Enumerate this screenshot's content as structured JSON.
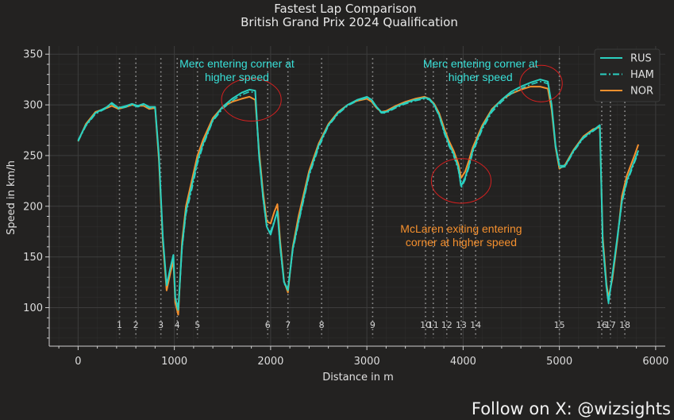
{
  "chart_data": {
    "type": "line",
    "title": "Fastest Lap Comparison",
    "subtitle": "British Grand Prix 2024 Qualification",
    "xlabel": "Distance in m",
    "ylabel": "Speed in km/h",
    "xlim": [
      -300,
      6100
    ],
    "ylim": [
      62,
      358
    ],
    "x_ticks": [
      0,
      1000,
      2000,
      3000,
      4000,
      5000,
      6000
    ],
    "y_ticks": [
      100,
      150,
      200,
      250,
      300,
      350
    ],
    "grid": true,
    "legend_position": "top-right",
    "series": [
      {
        "name": "RUS",
        "color": "#2bd0c0",
        "style": "solid",
        "points": [
          [
            0,
            265
          ],
          [
            80,
            280
          ],
          [
            180,
            292
          ],
          [
            300,
            298
          ],
          [
            350,
            302
          ],
          [
            420,
            297
          ],
          [
            500,
            299
          ],
          [
            560,
            301
          ],
          [
            620,
            299
          ],
          [
            680,
            301
          ],
          [
            740,
            298
          ],
          [
            800,
            298
          ],
          [
            840,
            250
          ],
          [
            880,
            170
          ],
          [
            920,
            122
          ],
          [
            960,
            140
          ],
          [
            990,
            152
          ],
          [
            1010,
            110
          ],
          [
            1040,
            98
          ],
          [
            1080,
            160
          ],
          [
            1120,
            195
          ],
          [
            1180,
            220
          ],
          [
            1240,
            245
          ],
          [
            1300,
            262
          ],
          [
            1400,
            285
          ],
          [
            1500,
            298
          ],
          [
            1600,
            306
          ],
          [
            1700,
            312
          ],
          [
            1780,
            315
          ],
          [
            1840,
            314
          ],
          [
            1880,
            250
          ],
          [
            1920,
            210
          ],
          [
            1960,
            180
          ],
          [
            2000,
            172
          ],
          [
            2040,
            185
          ],
          [
            2070,
            195
          ],
          [
            2100,
            160
          ],
          [
            2140,
            125
          ],
          [
            2180,
            118
          ],
          [
            2230,
            158
          ],
          [
            2290,
            185
          ],
          [
            2400,
            232
          ],
          [
            2500,
            260
          ],
          [
            2600,
            280
          ],
          [
            2700,
            292
          ],
          [
            2800,
            300
          ],
          [
            2900,
            305
          ],
          [
            3000,
            308
          ],
          [
            3050,
            305
          ],
          [
            3100,
            298
          ],
          [
            3150,
            293
          ],
          [
            3200,
            293
          ],
          [
            3300,
            298
          ],
          [
            3400,
            302
          ],
          [
            3500,
            305
          ],
          [
            3600,
            307
          ],
          [
            3650,
            306
          ],
          [
            3700,
            300
          ],
          [
            3750,
            290
          ],
          [
            3800,
            275
          ],
          [
            3850,
            262
          ],
          [
            3900,
            252
          ],
          [
            3950,
            238
          ],
          [
            3980,
            220
          ],
          [
            4020,
            228
          ],
          [
            4060,
            240
          ],
          [
            4100,
            255
          ],
          [
            4200,
            278
          ],
          [
            4300,
            295
          ],
          [
            4400,
            305
          ],
          [
            4500,
            313
          ],
          [
            4600,
            318
          ],
          [
            4700,
            322
          ],
          [
            4800,
            325
          ],
          [
            4880,
            323
          ],
          [
            4920,
            300
          ],
          [
            4960,
            260
          ],
          [
            5000,
            240
          ],
          [
            5060,
            240
          ],
          [
            5150,
            255
          ],
          [
            5250,
            268
          ],
          [
            5350,
            275
          ],
          [
            5420,
            280
          ],
          [
            5450,
            165
          ],
          [
            5490,
            120
          ],
          [
            5510,
            105
          ],
          [
            5550,
            132
          ],
          [
            5600,
            168
          ],
          [
            5650,
            205
          ],
          [
            5700,
            225
          ],
          [
            5780,
            245
          ],
          [
            5820,
            255
          ]
        ]
      },
      {
        "name": "HAM",
        "color": "#2bd0c0",
        "style": "dashdot",
        "points": [
          [
            0,
            264
          ],
          [
            80,
            279
          ],
          [
            180,
            291
          ],
          [
            300,
            297
          ],
          [
            350,
            301
          ],
          [
            420,
            296
          ],
          [
            500,
            298
          ],
          [
            560,
            300
          ],
          [
            620,
            298
          ],
          [
            680,
            300
          ],
          [
            740,
            297
          ],
          [
            800,
            297
          ],
          [
            840,
            248
          ],
          [
            880,
            168
          ],
          [
            920,
            121
          ],
          [
            960,
            139
          ],
          [
            990,
            150
          ],
          [
            1010,
            109
          ],
          [
            1040,
            97
          ],
          [
            1080,
            158
          ],
          [
            1120,
            192
          ],
          [
            1180,
            216
          ],
          [
            1240,
            242
          ],
          [
            1300,
            260
          ],
          [
            1400,
            284
          ],
          [
            1500,
            296
          ],
          [
            1600,
            304
          ],
          [
            1700,
            310
          ],
          [
            1780,
            313
          ],
          [
            1840,
            312
          ],
          [
            1880,
            248
          ],
          [
            1920,
            208
          ],
          [
            1960,
            179
          ],
          [
            2000,
            175
          ],
          [
            2040,
            186
          ],
          [
            2070,
            196
          ],
          [
            2100,
            158
          ],
          [
            2140,
            124
          ],
          [
            2180,
            117
          ],
          [
            2230,
            156
          ],
          [
            2290,
            183
          ],
          [
            2400,
            230
          ],
          [
            2500,
            258
          ],
          [
            2600,
            279
          ],
          [
            2700,
            291
          ],
          [
            2800,
            299
          ],
          [
            2900,
            304
          ],
          [
            3000,
            307
          ],
          [
            3050,
            304
          ],
          [
            3100,
            297
          ],
          [
            3150,
            292
          ],
          [
            3200,
            292
          ],
          [
            3300,
            297
          ],
          [
            3400,
            301
          ],
          [
            3500,
            304
          ],
          [
            3600,
            306
          ],
          [
            3650,
            305
          ],
          [
            3700,
            299
          ],
          [
            3750,
            289
          ],
          [
            3800,
            273
          ],
          [
            3850,
            260
          ],
          [
            3900,
            250
          ],
          [
            3950,
            236
          ],
          [
            3980,
            218
          ],
          [
            4020,
            226
          ],
          [
            4060,
            238
          ],
          [
            4100,
            253
          ],
          [
            4200,
            276
          ],
          [
            4300,
            293
          ],
          [
            4400,
            303
          ],
          [
            4500,
            311
          ],
          [
            4600,
            316
          ],
          [
            4700,
            320
          ],
          [
            4800,
            323
          ],
          [
            4880,
            321
          ],
          [
            4920,
            298
          ],
          [
            4960,
            258
          ],
          [
            5000,
            238
          ],
          [
            5060,
            239
          ],
          [
            5150,
            254
          ],
          [
            5250,
            267
          ],
          [
            5350,
            274
          ],
          [
            5420,
            279
          ],
          [
            5450,
            163
          ],
          [
            5490,
            118
          ],
          [
            5510,
            104
          ],
          [
            5550,
            130
          ],
          [
            5600,
            166
          ],
          [
            5650,
            203
          ],
          [
            5700,
            223
          ],
          [
            5780,
            243
          ],
          [
            5820,
            253
          ]
        ]
      },
      {
        "name": "NOR",
        "color": "#f5902e",
        "style": "solid",
        "points": [
          [
            0,
            264
          ],
          [
            80,
            281
          ],
          [
            180,
            293
          ],
          [
            300,
            297
          ],
          [
            350,
            299
          ],
          [
            420,
            296
          ],
          [
            500,
            298
          ],
          [
            560,
            300
          ],
          [
            620,
            299
          ],
          [
            680,
            299
          ],
          [
            740,
            296
          ],
          [
            800,
            297
          ],
          [
            840,
            245
          ],
          [
            880,
            165
          ],
          [
            920,
            117
          ],
          [
            960,
            135
          ],
          [
            990,
            146
          ],
          [
            1010,
            105
          ],
          [
            1040,
            93
          ],
          [
            1080,
            165
          ],
          [
            1120,
            200
          ],
          [
            1180,
            225
          ],
          [
            1240,
            250
          ],
          [
            1300,
            266
          ],
          [
            1400,
            287
          ],
          [
            1500,
            298
          ],
          [
            1600,
            303
          ],
          [
            1700,
            306
          ],
          [
            1780,
            308
          ],
          [
            1840,
            305
          ],
          [
            1880,
            255
          ],
          [
            1920,
            215
          ],
          [
            1960,
            185
          ],
          [
            2000,
            183
          ],
          [
            2040,
            195
          ],
          [
            2070,
            202
          ],
          [
            2100,
            165
          ],
          [
            2140,
            126
          ],
          [
            2180,
            115
          ],
          [
            2230,
            160
          ],
          [
            2290,
            190
          ],
          [
            2400,
            235
          ],
          [
            2500,
            262
          ],
          [
            2600,
            281
          ],
          [
            2700,
            293
          ],
          [
            2800,
            300
          ],
          [
            2900,
            304
          ],
          [
            3000,
            306
          ],
          [
            3050,
            303
          ],
          [
            3100,
            297
          ],
          [
            3150,
            293
          ],
          [
            3200,
            294
          ],
          [
            3300,
            299
          ],
          [
            3400,
            303
          ],
          [
            3500,
            306
          ],
          [
            3600,
            308
          ],
          [
            3650,
            306
          ],
          [
            3700,
            301
          ],
          [
            3750,
            292
          ],
          [
            3800,
            278
          ],
          [
            3850,
            265
          ],
          [
            3900,
            255
          ],
          [
            3950,
            242
          ],
          [
            3980,
            228
          ],
          [
            4020,
            234
          ],
          [
            4060,
            245
          ],
          [
            4100,
            258
          ],
          [
            4200,
            280
          ],
          [
            4300,
            296
          ],
          [
            4400,
            305
          ],
          [
            4500,
            311
          ],
          [
            4600,
            315
          ],
          [
            4700,
            318
          ],
          [
            4800,
            318
          ],
          [
            4880,
            316
          ],
          [
            4920,
            295
          ],
          [
            4960,
            258
          ],
          [
            5000,
            237
          ],
          [
            5060,
            241
          ],
          [
            5150,
            256
          ],
          [
            5250,
            269
          ],
          [
            5350,
            276
          ],
          [
            5420,
            278
          ],
          [
            5450,
            170
          ],
          [
            5490,
            123
          ],
          [
            5510,
            110
          ],
          [
            5550,
            128
          ],
          [
            5600,
            165
          ],
          [
            5650,
            210
          ],
          [
            5700,
            230
          ],
          [
            5780,
            250
          ],
          [
            5820,
            261
          ]
        ]
      }
    ],
    "corners": [
      {
        "label": "1",
        "x": 430
      },
      {
        "label": "2",
        "x": 600
      },
      {
        "label": "3",
        "x": 860
      },
      {
        "label": "4",
        "x": 1030
      },
      {
        "label": "5",
        "x": 1240
      },
      {
        "label": "6",
        "x": 1970
      },
      {
        "label": "7",
        "x": 2180
      },
      {
        "label": "8",
        "x": 2530
      },
      {
        "label": "9",
        "x": 3060
      },
      {
        "label": "10",
        "x": 3610
      },
      {
        "label": "11",
        "x": 3690
      },
      {
        "label": "12",
        "x": 3830
      },
      {
        "label": "13",
        "x": 3980
      },
      {
        "label": "14",
        "x": 4130
      },
      {
        "label": "15",
        "x": 5000
      },
      {
        "label": "16",
        "x": 5440
      },
      {
        "label": "17",
        "x": 5530
      },
      {
        "label": "18",
        "x": 5680
      }
    ],
    "annotations": [
      {
        "lines": [
          "Merc entering corner at",
          "higher speed"
        ],
        "color": "#39e0d8",
        "x": 1650,
        "y": 337
      },
      {
        "lines": [
          "Merc entering corner at",
          "higher speed"
        ],
        "color": "#39e0d8",
        "x": 4180,
        "y": 337
      },
      {
        "lines": [
          "McLaren exiting entering",
          "corner at higher speed"
        ],
        "color": "#f5902e",
        "x": 3980,
        "y": 174
      }
    ],
    "highlight_circles": [
      {
        "cx": 1800,
        "cy": 305,
        "rx": 310,
        "ry": 21
      },
      {
        "cx": 3980,
        "cy": 225,
        "rx": 310,
        "ry": 22
      },
      {
        "cx": 4810,
        "cy": 321,
        "rx": 220,
        "ry": 18
      }
    ]
  },
  "footer": {
    "credit": "Follow on X: @wizsights"
  },
  "colors": {
    "background": "#232221",
    "axis": "#cfcfcf",
    "grid": "#3d3d3d",
    "circle": "#d42020"
  }
}
